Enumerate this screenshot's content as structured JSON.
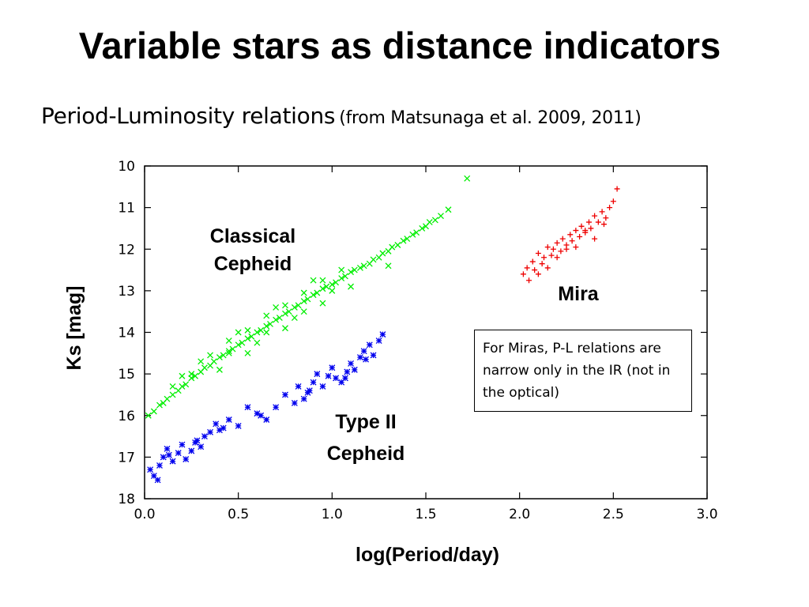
{
  "slide": {
    "title": "Variable stars as distance indicators",
    "subtitle_main": "Period-Luminosity relations",
    "subtitle_cite": "(from Matsunaga et al. 2009, 2011)",
    "note": "For Miras, P-L relations are narrow only in the IR (not in the optical)"
  },
  "chart_data": {
    "type": "scatter",
    "xlabel": "log(Period/day)",
    "ylabel": "Ks [mag]",
    "xlim": [
      0.0,
      3.0
    ],
    "ylim": [
      10,
      18
    ],
    "y_inverted": true,
    "x_ticks": [
      "0.0",
      "0.5",
      "1.0",
      "1.5",
      "2.0",
      "2.5",
      "3.0"
    ],
    "y_ticks": [
      "10",
      "11",
      "12",
      "13",
      "14",
      "15",
      "16",
      "17",
      "18"
    ],
    "grid": false,
    "legend": "none",
    "series": [
      {
        "label": "Classical Cepheid",
        "marker": "x",
        "color": "#00ee00",
        "x": [
          0.02,
          0.05,
          0.08,
          0.1,
          0.12,
          0.15,
          0.18,
          0.2,
          0.22,
          0.25,
          0.27,
          0.3,
          0.32,
          0.35,
          0.37,
          0.4,
          0.42,
          0.45,
          0.47,
          0.5,
          0.52,
          0.55,
          0.57,
          0.6,
          0.62,
          0.65,
          0.67,
          0.7,
          0.72,
          0.75,
          0.77,
          0.8,
          0.82,
          0.85,
          0.87,
          0.9,
          0.92,
          0.95,
          0.97,
          1.0,
          1.02,
          1.05,
          1.07,
          1.1,
          1.12,
          1.15,
          1.17,
          1.2,
          1.22,
          1.25,
          1.27,
          1.3,
          1.32,
          1.35,
          1.38,
          1.4,
          1.43,
          1.45,
          1.48,
          1.5,
          1.52,
          1.55,
          1.58,
          1.62,
          1.72,
          0.15,
          0.25,
          0.35,
          0.45,
          0.55,
          0.65,
          0.75,
          0.85,
          0.95,
          1.05,
          0.3,
          0.5,
          0.7,
          0.9,
          0.4,
          0.6,
          0.8,
          1.0,
          0.2,
          0.45,
          0.65,
          0.85,
          1.1,
          1.3,
          0.55,
          0.75,
          0.95
        ],
        "y": [
          16.0,
          15.9,
          15.75,
          15.7,
          15.6,
          15.5,
          15.4,
          15.3,
          15.25,
          15.1,
          15.05,
          14.95,
          14.85,
          14.8,
          14.7,
          14.6,
          14.55,
          14.45,
          14.4,
          14.3,
          14.25,
          14.15,
          14.1,
          14.0,
          13.95,
          13.85,
          13.8,
          13.7,
          13.65,
          13.55,
          13.5,
          13.4,
          13.35,
          13.25,
          13.2,
          13.1,
          13.05,
          12.95,
          12.9,
          12.85,
          12.8,
          12.7,
          12.65,
          12.55,
          12.5,
          12.45,
          12.4,
          12.35,
          12.25,
          12.2,
          12.1,
          12.05,
          11.95,
          11.9,
          11.8,
          11.75,
          11.65,
          11.6,
          11.5,
          11.45,
          11.35,
          11.3,
          11.2,
          11.05,
          10.3,
          15.3,
          15.0,
          14.55,
          14.2,
          13.95,
          13.6,
          13.35,
          13.05,
          12.75,
          12.5,
          14.7,
          14.0,
          13.4,
          12.75,
          14.9,
          14.25,
          13.65,
          13.0,
          15.05,
          14.5,
          14.0,
          13.5,
          12.9,
          12.4,
          14.5,
          13.9,
          13.3
        ]
      },
      {
        "label": "Type II Cepheid",
        "marker": "*",
        "color": "#0000ee",
        "x": [
          0.03,
          0.05,
          0.07,
          0.1,
          0.12,
          0.15,
          0.18,
          0.2,
          0.22,
          0.25,
          0.28,
          0.3,
          0.32,
          0.35,
          0.38,
          0.4,
          0.45,
          0.5,
          0.55,
          0.6,
          0.65,
          0.7,
          0.75,
          0.8,
          0.82,
          0.85,
          0.88,
          0.9,
          0.92,
          0.95,
          0.98,
          1.0,
          1.02,
          1.05,
          1.08,
          1.1,
          1.12,
          1.15,
          1.17,
          1.2,
          1.22,
          1.25,
          1.27,
          0.08,
          0.13,
          0.27,
          0.42,
          0.62,
          0.87,
          1.07,
          1.18
        ],
        "y": [
          17.3,
          17.45,
          17.55,
          17.0,
          16.8,
          17.1,
          16.9,
          16.7,
          17.05,
          16.85,
          16.6,
          16.75,
          16.5,
          16.4,
          16.2,
          16.35,
          16.1,
          16.25,
          15.8,
          15.95,
          16.1,
          15.8,
          15.5,
          15.7,
          15.3,
          15.6,
          15.4,
          15.2,
          15.0,
          15.3,
          15.05,
          14.85,
          15.1,
          15.2,
          14.95,
          14.75,
          14.9,
          14.6,
          14.45,
          14.3,
          14.55,
          14.2,
          14.05,
          17.2,
          16.95,
          16.65,
          16.3,
          16.0,
          15.45,
          15.1,
          14.65
        ]
      },
      {
        "label": "Mira",
        "marker": "+",
        "color": "#ee0000",
        "x": [
          2.02,
          2.04,
          2.05,
          2.07,
          2.08,
          2.1,
          2.12,
          2.13,
          2.15,
          2.17,
          2.18,
          2.2,
          2.22,
          2.23,
          2.25,
          2.27,
          2.28,
          2.3,
          2.32,
          2.33,
          2.35,
          2.37,
          2.38,
          2.4,
          2.42,
          2.44,
          2.46,
          2.48,
          2.5,
          2.52,
          2.1,
          2.2,
          2.3,
          2.4,
          2.15,
          2.25,
          2.35,
          2.45
        ],
        "y": [
          12.6,
          12.45,
          12.75,
          12.3,
          12.5,
          12.1,
          12.35,
          12.2,
          11.95,
          12.15,
          12.0,
          11.85,
          12.05,
          11.75,
          11.9,
          11.65,
          11.8,
          11.55,
          11.7,
          11.45,
          11.6,
          11.35,
          11.5,
          11.2,
          11.35,
          11.1,
          11.25,
          11.0,
          10.85,
          10.55,
          12.6,
          12.2,
          11.95,
          11.75,
          12.45,
          12.0,
          11.55,
          11.4
        ]
      }
    ],
    "annotations": [
      {
        "lines": [
          "Classical",
          "Cepheid"
        ]
      },
      {
        "lines": [
          "Type II",
          "Cepheid"
        ]
      },
      {
        "lines": [
          "Mira"
        ]
      }
    ]
  }
}
